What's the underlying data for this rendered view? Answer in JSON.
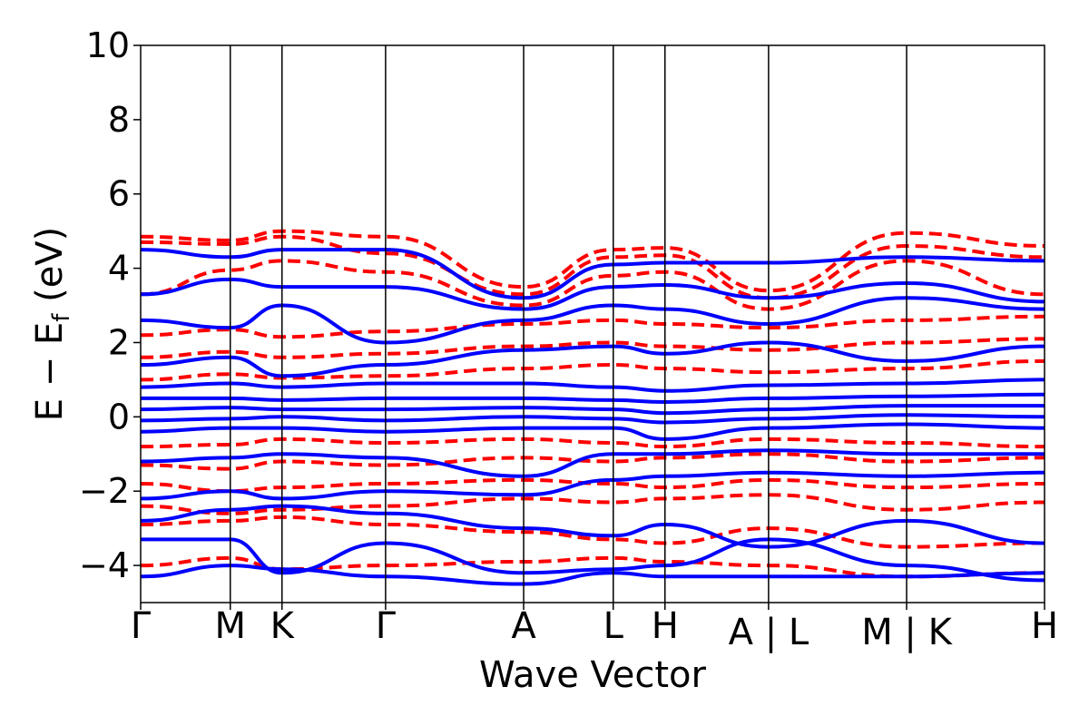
{
  "chart_data": {
    "type": "line",
    "xlabel": "Wave Vector",
    "ylabel": "E − E_f (eV)",
    "ylabel_parts": {
      "main": "E  −  E",
      "sub": "f",
      "unit": " (eV)"
    },
    "ylim": [
      -5,
      10
    ],
    "yticks": [
      "−4",
      "−2",
      "0",
      "2",
      "4",
      "6",
      "8",
      "10"
    ],
    "ytick_values": [
      -4,
      -2,
      0,
      2,
      4,
      6,
      8,
      10
    ],
    "grid": false,
    "kpath_labels": [
      "Γ",
      "M",
      "K",
      "Γ",
      "A",
      "L",
      "H",
      "A | L",
      "M | K",
      "H"
    ],
    "kpath_positions": [
      0,
      0.577,
      0.91,
      1.577,
      2.466,
      3.043,
      3.376,
      4.043,
      4.932,
      5.82
    ],
    "series": [
      {
        "style": "dashed",
        "color": "#ff0000",
        "bands": [
          {
            "x": [
              0,
              0.577,
              0.91,
              1.577,
              2.466,
              3.043,
              3.376,
              4.043,
              4.932,
              5.82
            ],
            "y": [
              4.85,
              4.75,
              5.0,
              4.85,
              3.5,
              4.5,
              4.55,
              3.4,
              4.95,
              4.6
            ]
          },
          {
            "x": [
              0,
              0.577,
              0.91,
              1.577,
              2.466,
              3.043,
              3.376,
              4.043,
              4.932,
              5.82
            ],
            "y": [
              4.7,
              4.65,
              4.85,
              4.4,
              3.3,
              4.3,
              4.35,
              3.2,
              4.6,
              4.3
            ]
          },
          {
            "x": [
              0,
              0.577,
              0.91,
              1.577,
              2.466,
              3.043,
              3.376,
              4.043,
              4.932,
              5.82
            ],
            "y": [
              3.3,
              3.95,
              4.2,
              3.9,
              3.0,
              3.8,
              3.9,
              2.9,
              4.2,
              3.3
            ]
          },
          {
            "x": [
              0,
              0.577,
              0.91,
              1.577,
              2.466,
              3.043,
              3.376,
              4.043,
              4.932,
              5.82
            ],
            "y": [
              2.2,
              2.35,
              2.15,
              2.3,
              2.5,
              2.6,
              2.5,
              2.4,
              2.6,
              2.7
            ]
          },
          {
            "x": [
              0,
              0.577,
              0.91,
              1.577,
              2.466,
              3.043,
              3.376,
              4.043,
              4.932,
              5.82
            ],
            "y": [
              1.6,
              1.75,
              1.6,
              1.7,
              1.9,
              2.0,
              1.9,
              1.8,
              2.0,
              2.1
            ]
          },
          {
            "x": [
              0,
              0.577,
              0.91,
              1.577,
              2.466,
              3.043,
              3.376,
              4.043,
              4.932,
              5.82
            ],
            "y": [
              1.0,
              1.15,
              1.05,
              1.1,
              1.3,
              1.4,
              1.3,
              1.2,
              1.3,
              1.5
            ]
          },
          {
            "x": [
              0,
              0.577,
              0.91,
              1.577,
              2.466,
              3.043,
              3.376,
              4.043,
              4.932,
              5.82
            ],
            "y": [
              -0.8,
              -0.75,
              -0.6,
              -0.7,
              -0.6,
              -0.7,
              -0.8,
              -0.6,
              -0.7,
              -0.8
            ]
          },
          {
            "x": [
              0,
              0.577,
              0.91,
              1.577,
              2.466,
              3.043,
              3.376,
              4.043,
              4.932,
              5.82
            ],
            "y": [
              -1.3,
              -1.4,
              -1.2,
              -1.3,
              -1.1,
              -1.2,
              -1.1,
              -1.0,
              -1.2,
              -1.1
            ]
          },
          {
            "x": [
              0,
              0.577,
              0.91,
              1.577,
              2.466,
              3.043,
              3.376,
              4.043,
              4.932,
              5.82
            ],
            "y": [
              -1.8,
              -2.0,
              -1.9,
              -1.8,
              -1.7,
              -1.8,
              -1.9,
              -1.7,
              -1.9,
              -1.8
            ]
          },
          {
            "x": [
              0,
              0.577,
              0.91,
              1.577,
              2.466,
              3.043,
              3.376,
              4.043,
              4.932,
              5.82
            ],
            "y": [
              -2.4,
              -2.6,
              -2.5,
              -2.4,
              -2.2,
              -2.3,
              -2.2,
              -2.1,
              -2.5,
              -2.3
            ]
          },
          {
            "x": [
              0,
              0.577,
              0.91,
              1.577,
              2.466,
              3.043,
              3.376,
              4.043,
              4.932,
              5.82
            ],
            "y": [
              -2.9,
              -2.8,
              -2.7,
              -2.9,
              -3.1,
              -3.3,
              -3.4,
              -3.0,
              -3.5,
              -3.4
            ]
          },
          {
            "x": [
              0,
              0.577,
              0.91,
              1.577,
              2.466,
              3.043,
              3.376,
              4.043,
              4.932,
              5.82
            ],
            "y": [
              -4.0,
              -3.8,
              -4.1,
              -4.0,
              -3.9,
              -3.8,
              -3.9,
              -4.0,
              -4.3,
              -4.2
            ]
          }
        ]
      },
      {
        "style": "solid",
        "color": "#0000ff",
        "bands": [
          {
            "x": [
              0,
              0.577,
              0.91,
              1.577,
              2.466,
              3.043,
              3.376,
              4.043,
              4.932,
              5.82
            ],
            "y": [
              4.5,
              4.3,
              4.5,
              4.5,
              3.2,
              4.1,
              4.15,
              4.15,
              4.3,
              4.2
            ]
          },
          {
            "x": [
              0,
              0.577,
              0.91,
              1.577,
              2.466,
              3.043,
              3.376,
              4.043,
              4.932,
              5.82
            ],
            "y": [
              3.3,
              3.7,
              3.5,
              3.5,
              2.9,
              3.5,
              3.55,
              3.2,
              3.6,
              3.1
            ]
          },
          {
            "x": [
              0,
              0.577,
              0.91,
              1.577,
              2.466,
              3.043,
              3.376,
              4.043,
              4.932,
              5.82
            ],
            "y": [
              2.6,
              2.4,
              3.0,
              2.0,
              2.6,
              3.0,
              2.9,
              2.5,
              3.2,
              2.9
            ]
          },
          {
            "x": [
              0,
              0.577,
              0.91,
              1.577,
              2.466,
              3.043,
              3.376,
              4.043,
              4.932,
              5.82
            ],
            "y": [
              1.4,
              1.6,
              1.1,
              1.4,
              1.8,
              1.9,
              1.7,
              2.0,
              1.5,
              1.9
            ]
          },
          {
            "x": [
              0,
              0.577,
              0.91,
              1.577,
              2.466,
              3.043,
              3.376,
              4.043,
              4.932,
              5.82
            ],
            "y": [
              0.8,
              0.9,
              0.8,
              0.9,
              0.9,
              0.8,
              0.7,
              0.85,
              0.9,
              1.0
            ]
          },
          {
            "x": [
              0,
              0.577,
              0.91,
              1.577,
              2.466,
              3.043,
              3.376,
              4.043,
              4.932,
              5.82
            ],
            "y": [
              0.5,
              0.5,
              0.45,
              0.5,
              0.5,
              0.45,
              0.4,
              0.5,
              0.55,
              0.6
            ]
          },
          {
            "x": [
              0,
              0.577,
              0.91,
              1.577,
              2.466,
              3.043,
              3.376,
              4.043,
              4.932,
              5.82
            ],
            "y": [
              0.2,
              0.25,
              0.2,
              0.2,
              0.25,
              0.2,
              0.1,
              0.2,
              0.3,
              0.3
            ]
          },
          {
            "x": [
              0,
              0.577,
              0.91,
              1.577,
              2.466,
              3.043,
              3.376,
              4.043,
              4.932,
              5.82
            ],
            "y": [
              -0.1,
              -0.05,
              0.0,
              -0.1,
              0.0,
              -0.05,
              -0.15,
              -0.05,
              0.05,
              0.0
            ]
          },
          {
            "x": [
              0,
              0.577,
              0.91,
              1.577,
              2.466,
              3.043,
              3.376,
              4.043,
              4.932,
              5.82
            ],
            "y": [
              -0.4,
              -0.3,
              -0.3,
              -0.4,
              -0.3,
              -0.3,
              -0.6,
              -0.3,
              -0.2,
              -0.3
            ]
          },
          {
            "x": [
              0,
              0.577,
              0.91,
              1.577,
              2.466,
              3.043,
              3.376,
              4.043,
              4.932,
              5.82
            ],
            "y": [
              -1.2,
              -1.1,
              -1.0,
              -1.1,
              -1.6,
              -1.0,
              -1.0,
              -0.9,
              -1.0,
              -1.0
            ]
          },
          {
            "x": [
              0,
              0.577,
              0.91,
              1.577,
              2.466,
              3.043,
              3.376,
              4.043,
              4.932,
              5.82
            ],
            "y": [
              -2.2,
              -2.0,
              -2.2,
              -2.0,
              -2.1,
              -1.7,
              -1.6,
              -1.5,
              -1.6,
              -1.5
            ]
          },
          {
            "x": [
              0,
              0.577,
              0.91,
              1.577,
              2.466,
              3.043,
              3.376,
              4.043,
              4.932,
              5.82
            ],
            "y": [
              -2.8,
              -2.5,
              -2.4,
              -2.6,
              -3.0,
              -3.2,
              -2.9,
              -3.5,
              -2.8,
              -3.4
            ]
          },
          {
            "x": [
              0,
              0.577,
              0.91,
              1.577,
              2.466,
              3.043,
              3.376,
              4.043,
              4.932,
              5.82
            ],
            "y": [
              -3.3,
              -3.3,
              -4.2,
              -3.4,
              -4.2,
              -4.1,
              -4.0,
              -3.3,
              -4.0,
              -4.4
            ]
          },
          {
            "x": [
              0,
              0.577,
              0.91,
              1.577,
              2.466,
              3.043,
              3.376,
              4.043,
              4.932,
              5.82
            ],
            "y": [
              -4.3,
              -4.0,
              -4.1,
              -4.3,
              -4.5,
              -4.2,
              -4.3,
              -4.3,
              -4.3,
              -4.2
            ]
          }
        ]
      }
    ]
  }
}
